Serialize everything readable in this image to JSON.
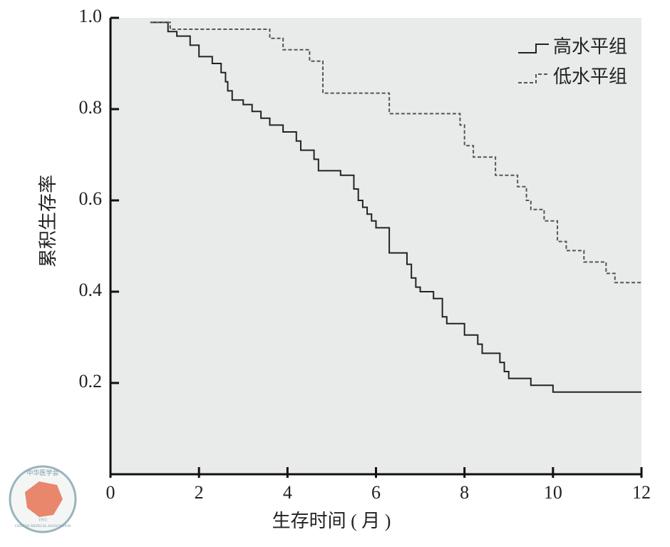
{
  "chart_data": {
    "type": "step",
    "xlabel": "生存时间 ( 月 )",
    "ylabel": "累积生存率",
    "xlim": [
      0,
      12
    ],
    "xticks": [
      0,
      2,
      4,
      6,
      8,
      10,
      12
    ],
    "ylim": [
      0,
      1
    ],
    "yticks": [
      0.2,
      0.4,
      0.6,
      0.8,
      {
        "value": 1,
        "label": "1.0"
      }
    ],
    "legend": "upper right",
    "series": [
      {
        "name": "高水平组",
        "color": "#222222",
        "dash": false,
        "x": [
          0.9,
          1.3,
          1.5,
          1.8,
          2.0,
          2.3,
          2.5,
          2.6,
          2.65,
          2.75,
          3.0,
          3.2,
          3.4,
          3.6,
          3.9,
          4.2,
          4.3,
          4.6,
          4.7,
          5.2,
          5.5,
          5.6,
          5.7,
          5.8,
          5.9,
          6.0,
          6.3,
          6.7,
          6.8,
          6.9,
          7.0,
          7.3,
          7.5,
          7.6,
          8.0,
          8.3,
          8.4,
          8.8,
          8.9,
          9.0,
          9.5,
          10.0,
          12.0
        ],
        "values": [
          0.99,
          0.97,
          0.96,
          0.94,
          0.915,
          0.9,
          0.88,
          0.86,
          0.84,
          0.82,
          0.81,
          0.795,
          0.78,
          0.765,
          0.75,
          0.73,
          0.71,
          0.69,
          0.665,
          0.655,
          0.625,
          0.6,
          0.585,
          0.57,
          0.555,
          0.54,
          0.485,
          0.46,
          0.43,
          0.41,
          0.4,
          0.385,
          0.345,
          0.33,
          0.305,
          0.285,
          0.265,
          0.245,
          0.225,
          0.21,
          0.195,
          0.18,
          0.18
        ]
      },
      {
        "name": "低水平组",
        "color": "#555555",
        "dash": true,
        "x": [
          0.9,
          1.35,
          3.6,
          3.9,
          4.5,
          4.8,
          6.3,
          7.9,
          8.0,
          8.2,
          8.7,
          9.2,
          9.4,
          9.5,
          9.8,
          10.1,
          10.3,
          10.7,
          11.2,
          11.4,
          12.0
        ],
        "values": [
          0.99,
          0.975,
          0.955,
          0.93,
          0.905,
          0.835,
          0.79,
          0.765,
          0.72,
          0.695,
          0.655,
          0.63,
          0.6,
          0.58,
          0.555,
          0.51,
          0.49,
          0.465,
          0.44,
          0.42,
          0.42
        ]
      }
    ]
  },
  "watermark": {
    "name": "中华医学会",
    "name_en": "CHINESE MEDICAL ASSOCIATION",
    "year": "1915"
  }
}
